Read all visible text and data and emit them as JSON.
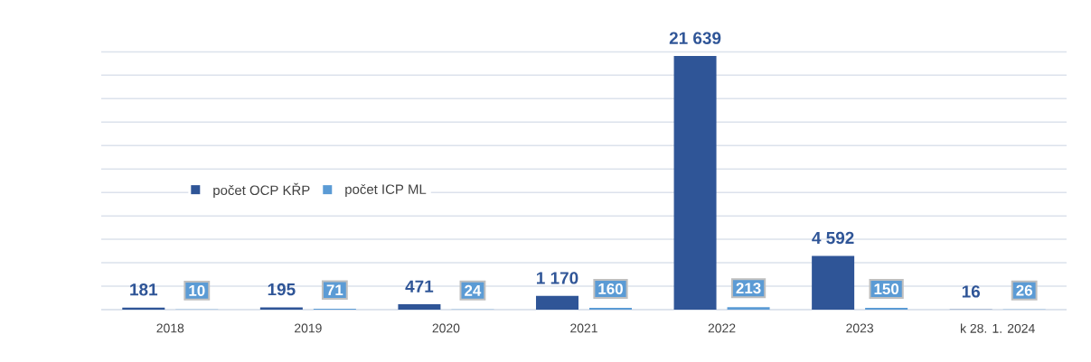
{
  "chart_data": {
    "type": "bar",
    "categories": [
      "2018",
      "2019",
      "2020",
      "2021",
      "2022",
      "2023",
      "k 28. 1. 2024"
    ],
    "series": [
      {
        "name": "počet OCP KŘP",
        "color": "#2f5597",
        "values": [
          181,
          195,
          471,
          1170,
          21639,
          4592,
          16
        ],
        "value_labels": [
          "181",
          "195",
          "471",
          "1 170",
          "21 639",
          "4 592",
          "16"
        ]
      },
      {
        "name": "počet ICP ML",
        "color": "#5b9bd5",
        "values": [
          10,
          71,
          24,
          160,
          213,
          150,
          26
        ],
        "value_labels": [
          "10",
          "71",
          "24",
          "160",
          "213",
          "150",
          "26"
        ]
      }
    ],
    "grid": "y",
    "legend": "left",
    "tick_labels": "x"
  }
}
